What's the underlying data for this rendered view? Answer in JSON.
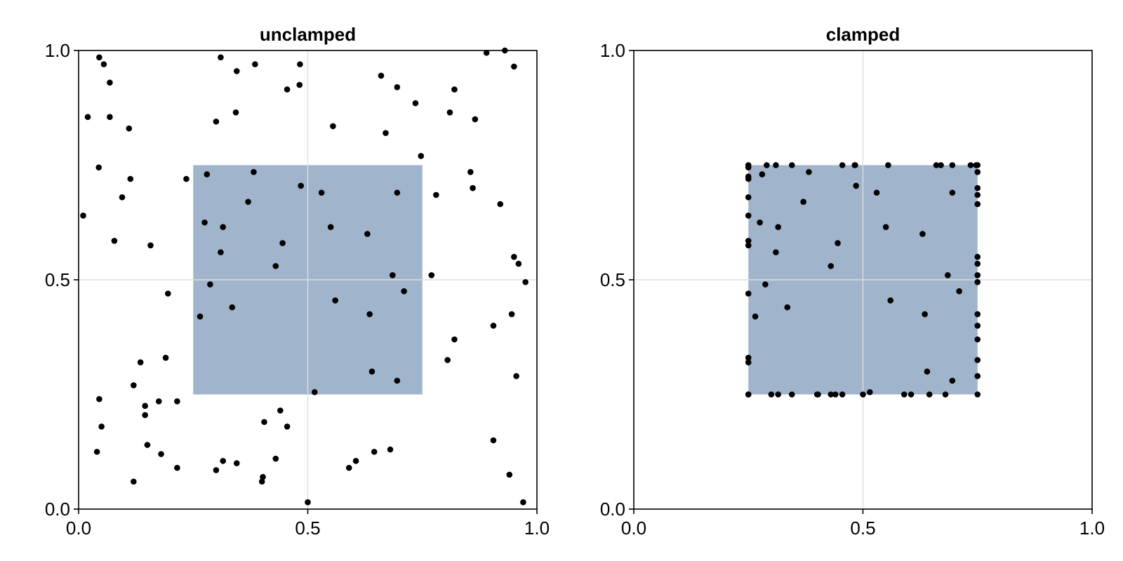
{
  "chart_data": [
    {
      "type": "scatter",
      "title": "unclamped",
      "xlim": [
        0,
        1
      ],
      "ylim": [
        0,
        1
      ],
      "xticks": [
        0.0,
        0.5,
        1.0
      ],
      "yticks": [
        0.0,
        0.5,
        1.0
      ],
      "xtick_labels": [
        "0.0",
        "0.5",
        "1.0"
      ],
      "ytick_labels": [
        "0.0",
        "0.5",
        "1.0"
      ],
      "grid": true,
      "region": {
        "x": [
          0.25,
          0.75
        ],
        "y": [
          0.25,
          0.75
        ],
        "color": "#a0b4cb"
      },
      "point_color": "#000000",
      "points": [
        [
          0.01,
          0.64
        ],
        [
          0.02,
          0.855
        ],
        [
          0.045,
          0.985
        ],
        [
          0.055,
          0.97
        ],
        [
          0.068,
          0.855
        ],
        [
          0.068,
          0.93
        ],
        [
          0.044,
          0.745
        ],
        [
          0.11,
          0.83
        ],
        [
          0.113,
          0.72
        ],
        [
          0.095,
          0.68
        ],
        [
          0.078,
          0.585
        ],
        [
          0.157,
          0.575
        ],
        [
          0.195,
          0.47
        ],
        [
          0.235,
          0.72
        ],
        [
          0.28,
          0.73
        ],
        [
          0.3,
          0.845
        ],
        [
          0.31,
          0.985
        ],
        [
          0.345,
          0.955
        ],
        [
          0.343,
          0.865
        ],
        [
          0.385,
          0.97
        ],
        [
          0.455,
          0.915
        ],
        [
          0.482,
          0.925
        ],
        [
          0.483,
          0.97
        ],
        [
          0.382,
          0.735
        ],
        [
          0.485,
          0.705
        ],
        [
          0.53,
          0.69
        ],
        [
          0.37,
          0.67
        ],
        [
          0.275,
          0.625
        ],
        [
          0.315,
          0.615
        ],
        [
          0.31,
          0.56
        ],
        [
          0.445,
          0.58
        ],
        [
          0.55,
          0.615
        ],
        [
          0.43,
          0.53
        ],
        [
          0.287,
          0.49
        ],
        [
          0.335,
          0.44
        ],
        [
          0.265,
          0.42
        ],
        [
          0.555,
          0.835
        ],
        [
          0.66,
          0.945
        ],
        [
          0.67,
          0.82
        ],
        [
          0.695,
          0.92
        ],
        [
          0.735,
          0.885
        ],
        [
          0.747,
          0.77
        ],
        [
          0.63,
          0.6
        ],
        [
          0.695,
          0.69
        ],
        [
          0.78,
          0.685
        ],
        [
          0.81,
          0.865
        ],
        [
          0.82,
          0.915
        ],
        [
          0.865,
          0.85
        ],
        [
          0.855,
          0.735
        ],
        [
          0.86,
          0.7
        ],
        [
          0.89,
          0.995
        ],
        [
          0.93,
          1.0
        ],
        [
          0.95,
          0.965
        ],
        [
          0.92,
          0.665
        ],
        [
          0.95,
          0.55
        ],
        [
          0.96,
          0.535
        ],
        [
          0.975,
          0.495
        ],
        [
          0.685,
          0.51
        ],
        [
          0.71,
          0.475
        ],
        [
          0.77,
          0.51
        ],
        [
          0.56,
          0.455
        ],
        [
          0.635,
          0.425
        ],
        [
          0.945,
          0.425
        ],
        [
          0.905,
          0.4
        ],
        [
          0.82,
          0.37
        ],
        [
          0.805,
          0.325
        ],
        [
          0.64,
          0.3
        ],
        [
          0.695,
          0.28
        ],
        [
          0.955,
          0.29
        ],
        [
          0.515,
          0.255
        ],
        [
          0.045,
          0.24
        ],
        [
          0.05,
          0.18
        ],
        [
          0.04,
          0.125
        ],
        [
          0.12,
          0.27
        ],
        [
          0.135,
          0.32
        ],
        [
          0.145,
          0.225
        ],
        [
          0.145,
          0.205
        ],
        [
          0.175,
          0.235
        ],
        [
          0.19,
          0.33
        ],
        [
          0.215,
          0.235
        ],
        [
          0.15,
          0.14
        ],
        [
          0.18,
          0.12
        ],
        [
          0.215,
          0.09
        ],
        [
          0.12,
          0.06
        ],
        [
          0.3,
          0.085
        ],
        [
          0.315,
          0.105
        ],
        [
          0.345,
          0.1
        ],
        [
          0.4,
          0.06
        ],
        [
          0.402,
          0.07
        ],
        [
          0.405,
          0.19
        ],
        [
          0.44,
          0.215
        ],
        [
          0.455,
          0.18
        ],
        [
          0.43,
          0.11
        ],
        [
          0.5,
          0.015
        ],
        [
          0.59,
          0.09
        ],
        [
          0.605,
          0.105
        ],
        [
          0.645,
          0.125
        ],
        [
          0.68,
          0.13
        ],
        [
          0.905,
          0.15
        ],
        [
          0.94,
          0.075
        ],
        [
          0.97,
          0.015
        ]
      ]
    },
    {
      "type": "scatter",
      "title": "clamped",
      "xlim": [
        0,
        1
      ],
      "ylim": [
        0,
        1
      ],
      "xticks": [
        0.0,
        0.5,
        1.0
      ],
      "yticks": [
        0.0,
        0.5,
        1.0
      ],
      "xtick_labels": [
        "0.0",
        "0.5",
        "1.0"
      ],
      "ytick_labels": [
        "0.0",
        "0.5",
        "1.0"
      ],
      "grid": true,
      "region": {
        "x": [
          0.25,
          0.75
        ],
        "y": [
          0.25,
          0.75
        ],
        "color": "#a0b4cb"
      },
      "point_color": "#000000",
      "points": [
        [
          0.25,
          0.75
        ],
        [
          0.25,
          0.745
        ],
        [
          0.25,
          0.725
        ],
        [
          0.25,
          0.72
        ],
        [
          0.25,
          0.68
        ],
        [
          0.25,
          0.64
        ],
        [
          0.25,
          0.585
        ],
        [
          0.25,
          0.575
        ],
        [
          0.25,
          0.47
        ],
        [
          0.25,
          0.33
        ],
        [
          0.25,
          0.32
        ],
        [
          0.25,
          0.25
        ],
        [
          0.25,
          0.25
        ],
        [
          0.25,
          0.25
        ],
        [
          0.29,
          0.75
        ],
        [
          0.3,
          0.25
        ],
        [
          0.31,
          0.75
        ],
        [
          0.315,
          0.25
        ],
        [
          0.345,
          0.75
        ],
        [
          0.345,
          0.25
        ],
        [
          0.4,
          0.25
        ],
        [
          0.402,
          0.25
        ],
        [
          0.43,
          0.25
        ],
        [
          0.44,
          0.25
        ],
        [
          0.455,
          0.25
        ],
        [
          0.455,
          0.75
        ],
        [
          0.482,
          0.75
        ],
        [
          0.483,
          0.75
        ],
        [
          0.5,
          0.25
        ],
        [
          0.555,
          0.75
        ],
        [
          0.59,
          0.25
        ],
        [
          0.605,
          0.25
        ],
        [
          0.645,
          0.25
        ],
        [
          0.66,
          0.75
        ],
        [
          0.67,
          0.75
        ],
        [
          0.68,
          0.25
        ],
        [
          0.695,
          0.75
        ],
        [
          0.735,
          0.75
        ],
        [
          0.747,
          0.75
        ],
        [
          0.75,
          0.75
        ],
        [
          0.75,
          0.735
        ],
        [
          0.75,
          0.7
        ],
        [
          0.75,
          0.685
        ],
        [
          0.75,
          0.665
        ],
        [
          0.75,
          0.55
        ],
        [
          0.75,
          0.535
        ],
        [
          0.75,
          0.51
        ],
        [
          0.75,
          0.495
        ],
        [
          0.75,
          0.425
        ],
        [
          0.75,
          0.4
        ],
        [
          0.75,
          0.37
        ],
        [
          0.75,
          0.325
        ],
        [
          0.75,
          0.29
        ],
        [
          0.75,
          0.25
        ],
        [
          0.28,
          0.73
        ],
        [
          0.382,
          0.735
        ],
        [
          0.485,
          0.705
        ],
        [
          0.53,
          0.69
        ],
        [
          0.37,
          0.67
        ],
        [
          0.275,
          0.625
        ],
        [
          0.315,
          0.615
        ],
        [
          0.31,
          0.56
        ],
        [
          0.445,
          0.58
        ],
        [
          0.55,
          0.615
        ],
        [
          0.43,
          0.53
        ],
        [
          0.287,
          0.49
        ],
        [
          0.335,
          0.44
        ],
        [
          0.265,
          0.42
        ],
        [
          0.63,
          0.6
        ],
        [
          0.695,
          0.69
        ],
        [
          0.685,
          0.51
        ],
        [
          0.71,
          0.475
        ],
        [
          0.56,
          0.455
        ],
        [
          0.635,
          0.425
        ],
        [
          0.64,
          0.3
        ],
        [
          0.695,
          0.28
        ],
        [
          0.515,
          0.255
        ]
      ]
    }
  ]
}
